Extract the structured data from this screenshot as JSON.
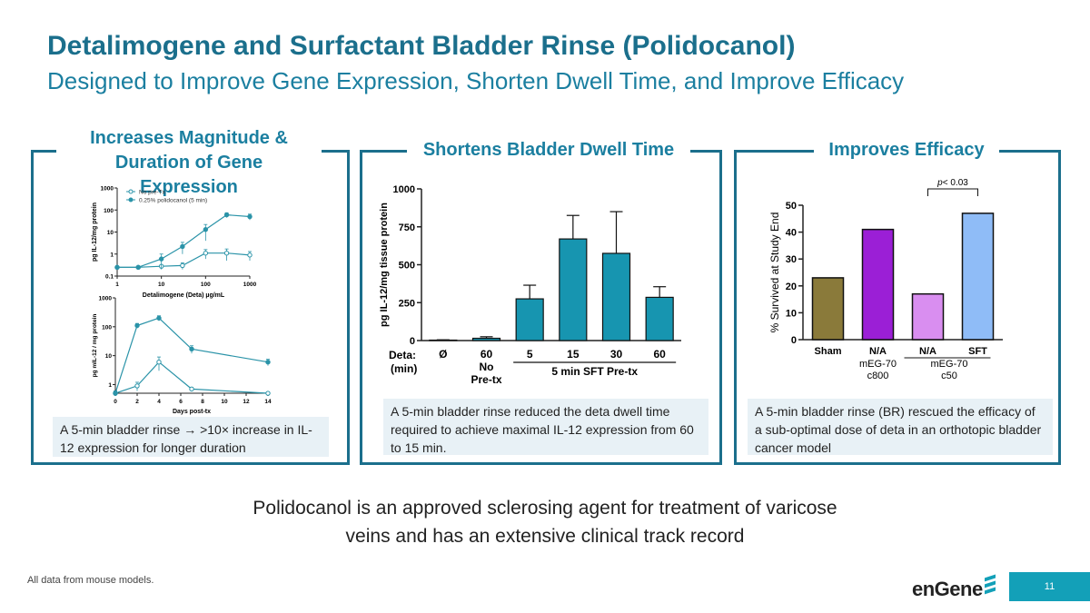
{
  "title": "Detalimogene and Surfactant Bladder Rinse (Polidocanol)",
  "subtitle": "Designed to Improve Gene Expression, Shorten Dwell Time, and Improve Efficacy",
  "panels": {
    "left": {
      "title_line1": "Increases Magnitude &",
      "title_line2": "Duration of Gene Expression",
      "caption_part1": "A 5-min bladder rinse ",
      "caption_arrow": "→",
      "caption_part2": " >10× increase in IL-12 expression for longer duration"
    },
    "middle": {
      "title": "Shortens Bladder Dwell Time",
      "caption": "A 5-min bladder rinse reduced the deta dwell time required to achieve maximal IL-12 expression from 60 to 15 min."
    },
    "right": {
      "title": "Improves Efficacy",
      "caption": "A 5-min bladder rinse (BR) rescued the efficacy of a sub-optimal dose of deta in an orthotopic  bladder cancer model"
    }
  },
  "bottom_text_line1": "Polidocanol is an approved sclerosing agent for treatment of varicose",
  "bottom_text_line2": "veins and has an extensive clinical track record",
  "footnote": "All data from mouse models.",
  "logo": "enGene",
  "page_number": "11",
  "colors": {
    "brand": "#1b6f8c",
    "accent": "#1b7fa0",
    "teal_series": "#2a93a8",
    "bar_teal": "#1795b0",
    "caption_bg": "#e8f1f6",
    "page_box": "#13a0b8"
  },
  "chart_data": [
    {
      "type": "line",
      "xscale": "log",
      "yscale": "log",
      "xlabel": "Detalimogene (Deta) µg/mL",
      "ylabel": "pg IL-12/mg protein",
      "x_ticks": [
        "1",
        "10",
        "100",
        "1000"
      ],
      "y_ticks": [
        "0.1",
        "1",
        "10",
        "100",
        "1000"
      ],
      "legend": [
        "No pre-Tx",
        "0.25% polidocanol (5 min)"
      ],
      "legend_position": "top-left",
      "series": [
        {
          "name": "No pre-Tx",
          "marker": "open-circle",
          "x": [
            1,
            3,
            10,
            30,
            100,
            300,
            1000
          ],
          "y": [
            0.25,
            0.25,
            0.28,
            0.3,
            1.1,
            1.1,
            0.9
          ],
          "err": [
            0.02,
            0.02,
            0.03,
            0.1,
            0.5,
            0.6,
            0.4
          ]
        },
        {
          "name": "0.25% polidocanol (5 min)",
          "marker": "filled-circle",
          "x": [
            1,
            3,
            10,
            30,
            100,
            300,
            1000
          ],
          "y": [
            0.25,
            0.25,
            0.6,
            2.2,
            13,
            60,
            50
          ],
          "err": [
            0.02,
            0.02,
            0.4,
            1.2,
            9,
            15,
            15
          ]
        }
      ]
    },
    {
      "type": "line",
      "yscale": "log",
      "xlabel": "Days post-tx",
      "ylabel": "pg mIL-12 / mg protein",
      "x_ticks": [
        "0",
        "2",
        "4",
        "6",
        "8",
        "10",
        "12",
        "14"
      ],
      "y_ticks": [
        "1",
        "10",
        "100",
        "1000"
      ],
      "series": [
        {
          "name": "No pre-Tx",
          "marker": "open-circle",
          "x": [
            0,
            2,
            4,
            7,
            14
          ],
          "y": [
            0.5,
            0.9,
            6,
            0.7,
            0.5
          ],
          "err": [
            0.1,
            0.3,
            3,
            0.1,
            0.05
          ]
        },
        {
          "name": "0.25% polidocanol (5 min)",
          "marker": "filled-circle",
          "x": [
            0,
            2,
            4,
            7,
            14
          ],
          "y": [
            0.5,
            110,
            200,
            17,
            6
          ],
          "err": [
            0.1,
            20,
            40,
            5,
            1.5
          ]
        }
      ]
    },
    {
      "type": "bar",
      "ylabel": "pg IL-12/mg tissue protein",
      "ylim": [
        0,
        1000
      ],
      "y_ticks": [
        "0",
        "250",
        "500",
        "750",
        "1000"
      ],
      "x_prefix_label_line1": "Deta:",
      "x_prefix_label_line2": "(min)",
      "categories": [
        "Ø",
        "60",
        "5",
        "15",
        "30",
        "60"
      ],
      "values": [
        3,
        15,
        275,
        670,
        575,
        285
      ],
      "errors": [
        2,
        10,
        90,
        155,
        275,
        70
      ],
      "group_labels": [
        {
          "label_line1": "No",
          "label_line2": "Pre-tx"
        },
        {
          "label": "5 min SFT Pre-tx"
        }
      ]
    },
    {
      "type": "bar",
      "ylabel": "% Survived at Study End",
      "ylim": [
        0,
        50
      ],
      "y_ticks": [
        "0",
        "10",
        "20",
        "30",
        "40",
        "50"
      ],
      "categories": [
        "Sham",
        "N/A",
        "N/A",
        "SFT"
      ],
      "values": [
        23,
        41,
        17,
        47
      ],
      "bar_colors": [
        "#8a7a3a",
        "#9b1fd6",
        "#d98ef0",
        "#8fbcf7"
      ],
      "group_labels": [
        {
          "label_line1": "mEG-70",
          "label_line2": "c800"
        },
        {
          "label_line1": "mEG-70",
          "label_line2": "c50"
        }
      ],
      "annotation": "p< 0.03"
    }
  ]
}
